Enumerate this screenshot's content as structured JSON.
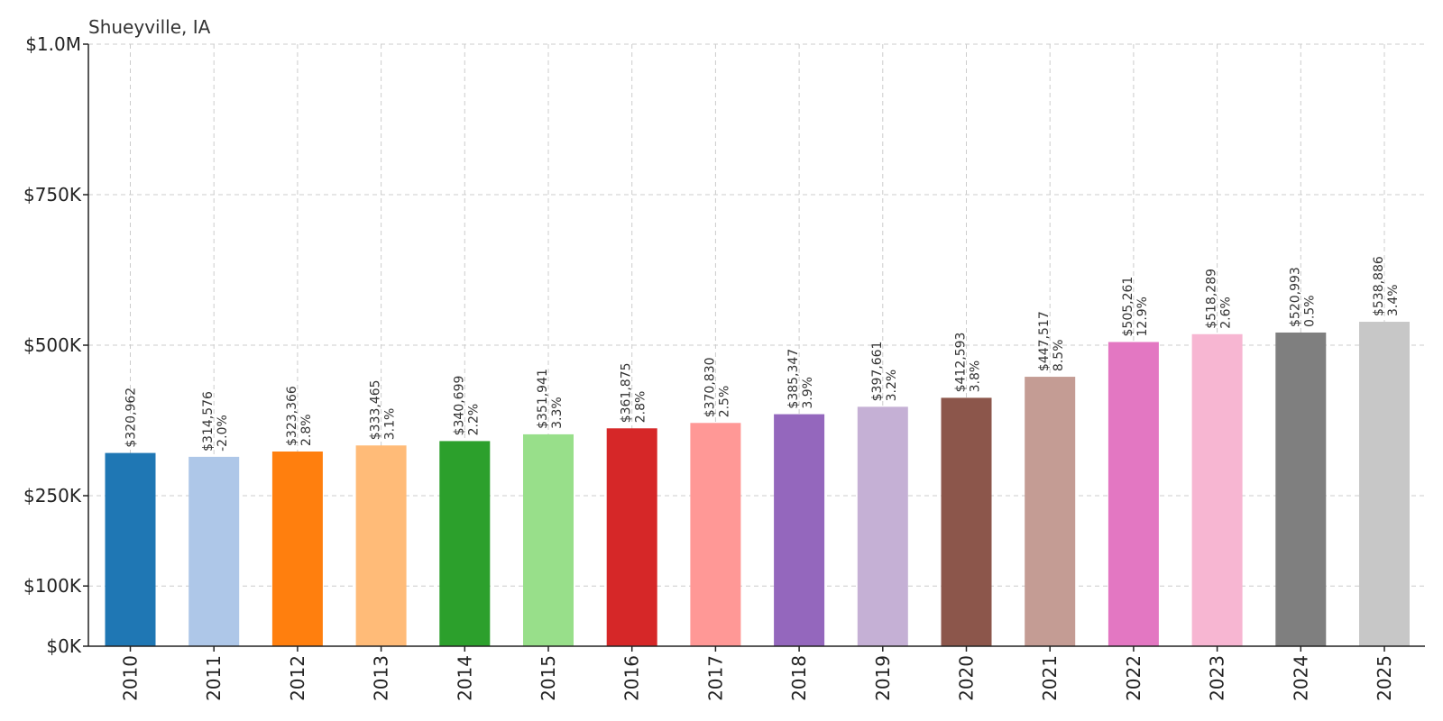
{
  "chart_data": {
    "type": "bar",
    "title": "Shueyville, IA",
    "xlabel": "",
    "ylabel": "",
    "ylim": [
      0,
      1000000
    ],
    "grid": true,
    "categories": [
      "2010",
      "2011",
      "2012",
      "2013",
      "2014",
      "2015",
      "2016",
      "2017",
      "2018",
      "2019",
      "2020",
      "2021",
      "2022",
      "2023",
      "2024",
      "2025"
    ],
    "values": [
      320962,
      314576,
      323366,
      333465,
      340699,
      351941,
      361875,
      370830,
      385347,
      397661,
      412593,
      447517,
      505261,
      518289,
      520993,
      538886
    ],
    "value_labels": [
      "$320,962",
      "$314,576",
      "$323,366",
      "$333,465",
      "$340,699",
      "$351,941",
      "$361,875",
      "$370,830",
      "$385,347",
      "$397,661",
      "$412,593",
      "$447,517",
      "$505,261",
      "$518,289",
      "$520,993",
      "$538,886"
    ],
    "change_labels": [
      "",
      "-2.0%",
      "2.8%",
      "3.1%",
      "2.2%",
      "3.3%",
      "2.8%",
      "2.5%",
      "3.9%",
      "3.2%",
      "3.8%",
      "8.5%",
      "12.9%",
      "2.6%",
      "0.5%",
      "3.4%"
    ],
    "colors": [
      "#1f77b4",
      "#aec7e8",
      "#ff7f0e",
      "#ffbb78",
      "#2ca02c",
      "#98df8a",
      "#d62728",
      "#ff9896",
      "#9467bd",
      "#c5b0d5",
      "#8c564b",
      "#c49c94",
      "#e377c2",
      "#f7b6d2",
      "#7f7f7f",
      "#c7c7c7"
    ],
    "y_ticks": [
      {
        "value": 0,
        "label": "$0K"
      },
      {
        "value": 100000,
        "label": "$100K"
      },
      {
        "value": 250000,
        "label": "$250K"
      },
      {
        "value": 500000,
        "label": "$500K"
      },
      {
        "value": 750000,
        "label": "$750K"
      },
      {
        "value": 1000000,
        "label": "$1.0M"
      }
    ]
  }
}
